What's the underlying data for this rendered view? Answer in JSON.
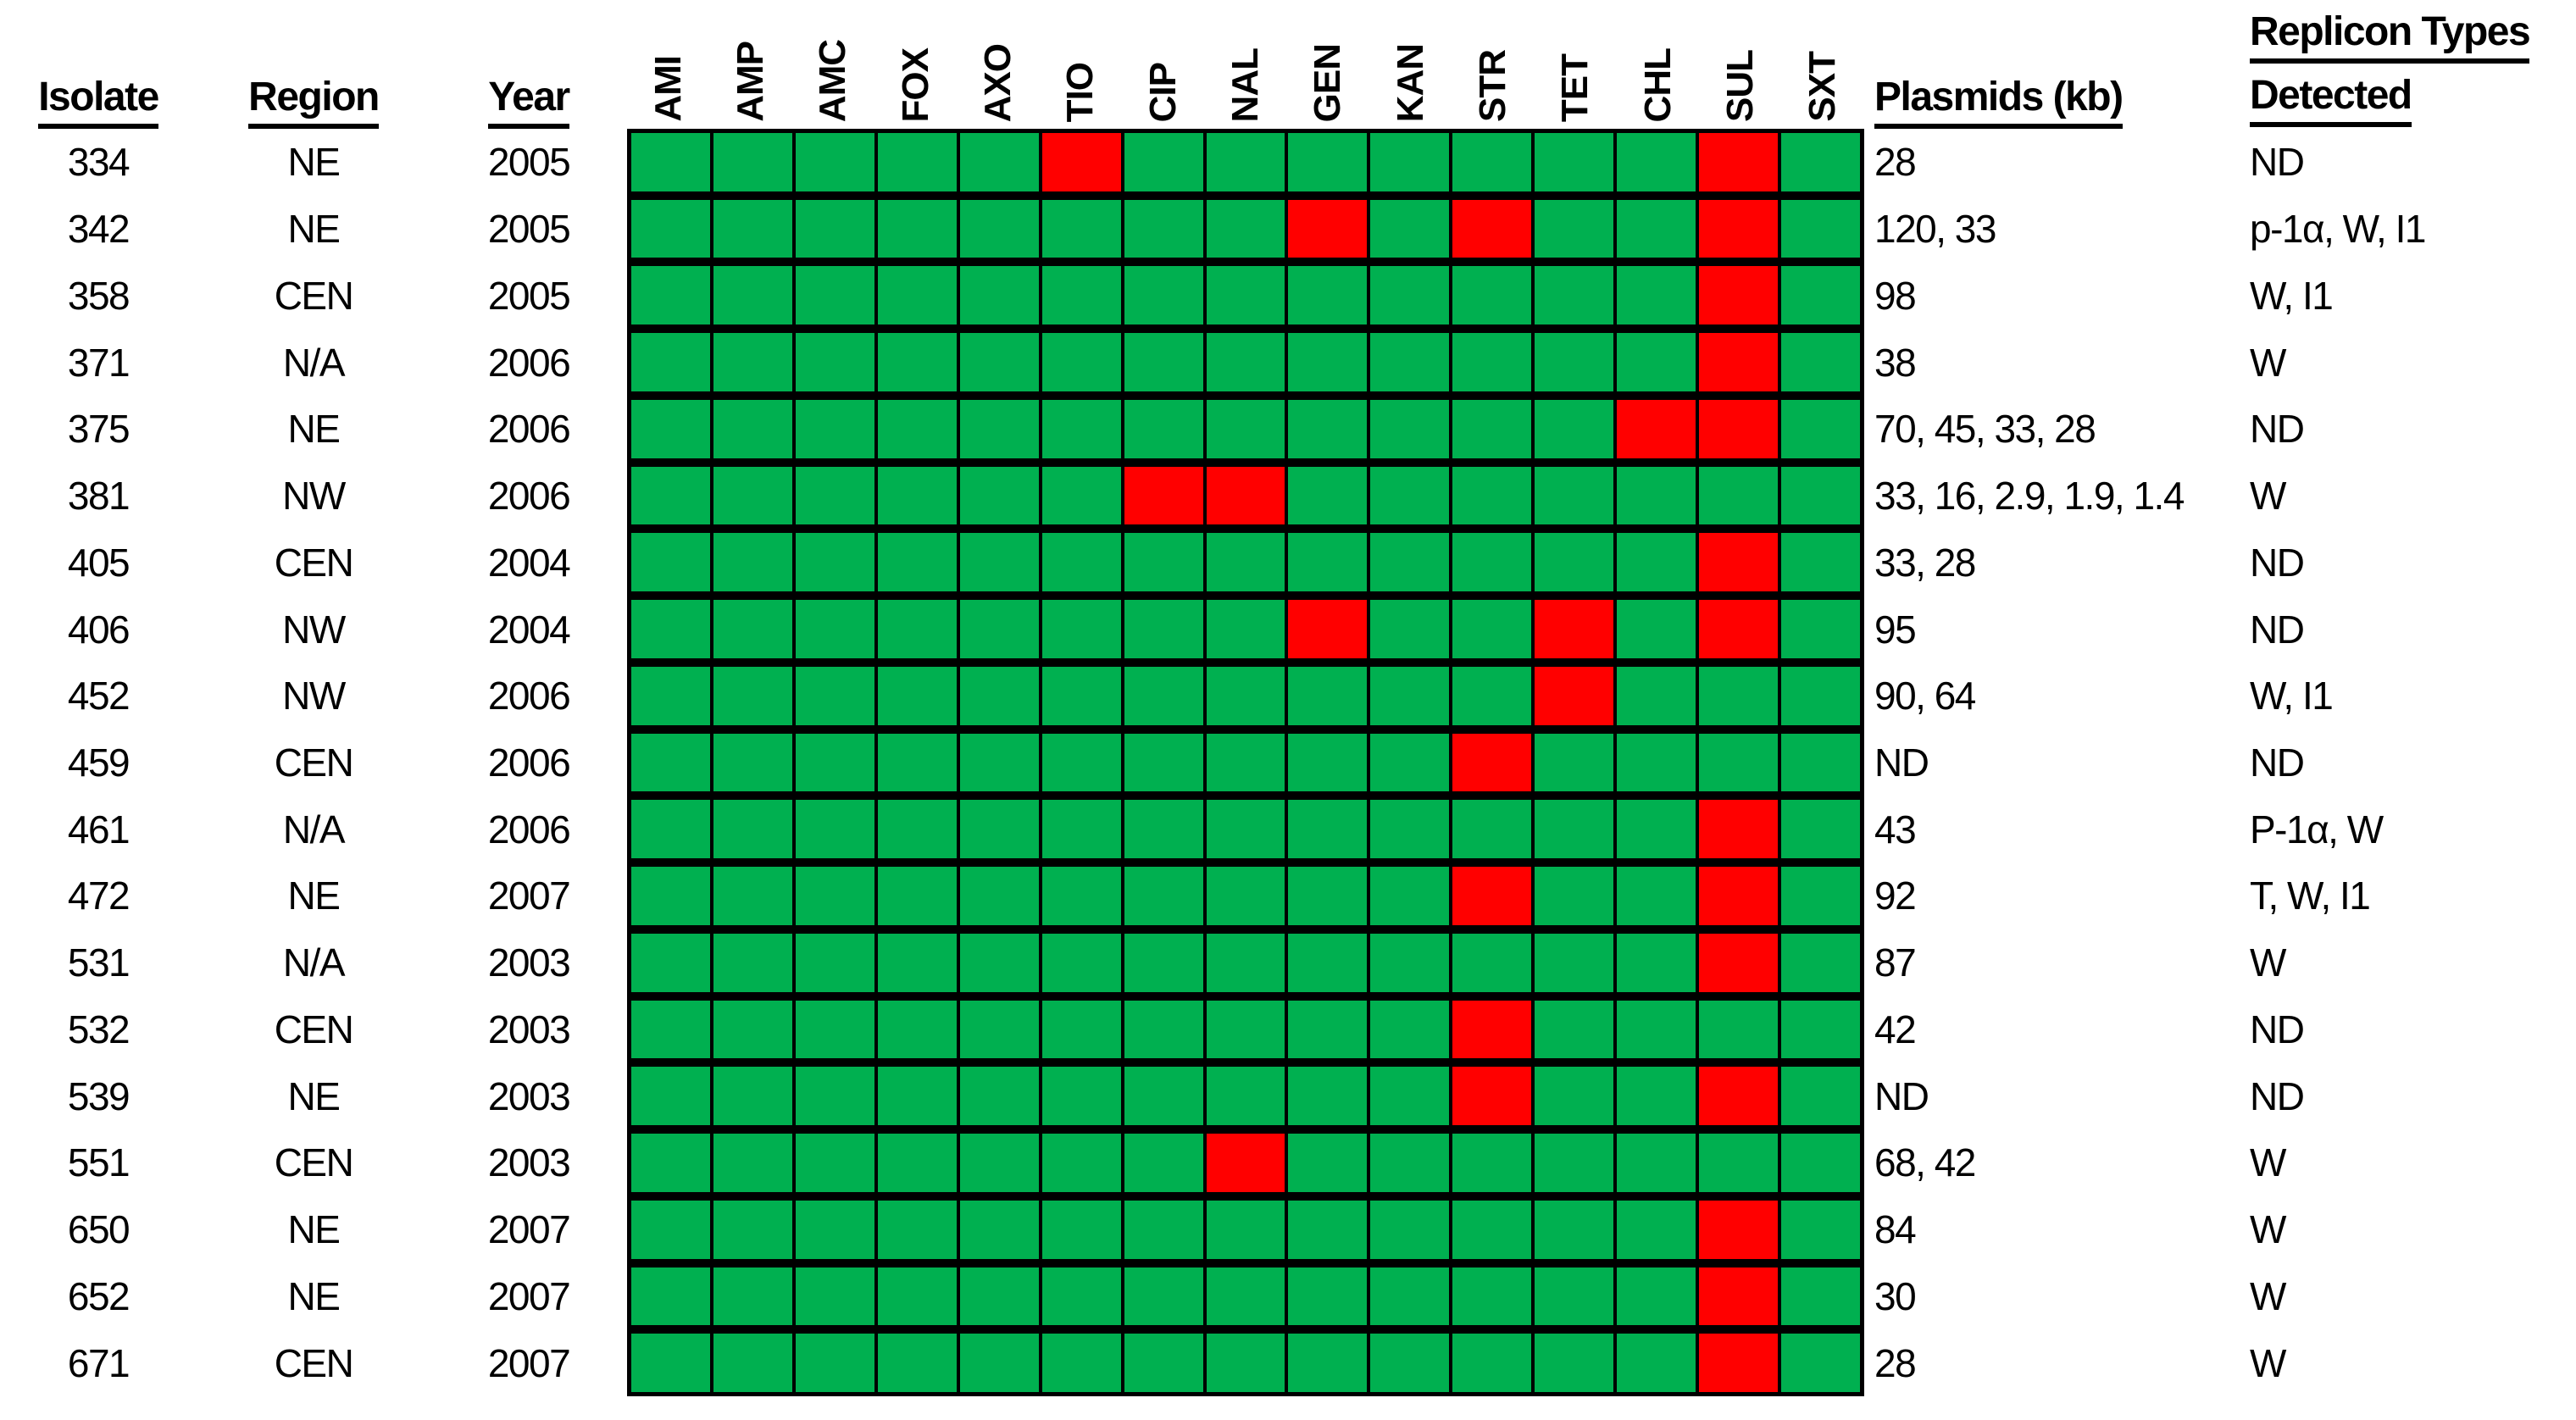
{
  "figure": {
    "headers": {
      "isolate": "Isolate",
      "region": "Region",
      "year": "Year",
      "plasmids": "Plasmids (kb)",
      "replicon_line1": "Replicon Types",
      "replicon_line2": "Detected"
    },
    "colors": {
      "green": "#00B050",
      "red": "#FF0000"
    }
  },
  "chart_data": {
    "type": "heatmap",
    "columns": [
      "AMI",
      "AMP",
      "AMC",
      "FOX",
      "AXO",
      "TIO",
      "CIP",
      "NAL",
      "GEN",
      "KAN",
      "STR",
      "TET",
      "CHL",
      "SUL",
      "SXT"
    ],
    "cell_colors": {
      "green": "#00B050",
      "red": "#FF0000"
    },
    "rows": [
      {
        "isolate": "334",
        "region": "NE",
        "year": "2005",
        "red": [
          "TIO",
          "SUL"
        ],
        "plasmids_kb": "28",
        "replicon_types": "ND"
      },
      {
        "isolate": "342",
        "region": "NE",
        "year": "2005",
        "red": [
          "GEN",
          "STR",
          "SUL"
        ],
        "plasmids_kb": "120, 33",
        "replicon_types": "p-1α, W, I1"
      },
      {
        "isolate": "358",
        "region": "CEN",
        "year": "2005",
        "red": [
          "SUL"
        ],
        "plasmids_kb": "98",
        "replicon_types": "W, I1"
      },
      {
        "isolate": "371",
        "region": "N/A",
        "year": "2006",
        "red": [
          "SUL"
        ],
        "plasmids_kb": "38",
        "replicon_types": "W"
      },
      {
        "isolate": "375",
        "region": "NE",
        "year": "2006",
        "red": [
          "CHL",
          "SUL"
        ],
        "plasmids_kb": "70, 45, 33, 28",
        "replicon_types": "ND"
      },
      {
        "isolate": "381",
        "region": "NW",
        "year": "2006",
        "red": [
          "CIP",
          "NAL"
        ],
        "plasmids_kb": "33, 16, 2.9, 1.9, 1.4",
        "replicon_types": "W"
      },
      {
        "isolate": "405",
        "region": "CEN",
        "year": "2004",
        "red": [
          "SUL"
        ],
        "plasmids_kb": "33, 28",
        "replicon_types": "ND"
      },
      {
        "isolate": "406",
        "region": "NW",
        "year": "2004",
        "red": [
          "GEN",
          "TET",
          "SUL"
        ],
        "plasmids_kb": "95",
        "replicon_types": "ND"
      },
      {
        "isolate": "452",
        "region": "NW",
        "year": "2006",
        "red": [
          "TET"
        ],
        "plasmids_kb": "90, 64",
        "replicon_types": "W, I1"
      },
      {
        "isolate": "459",
        "region": "CEN",
        "year": "2006",
        "red": [
          "STR"
        ],
        "plasmids_kb": "ND",
        "replicon_types": "ND"
      },
      {
        "isolate": "461",
        "region": "N/A",
        "year": "2006",
        "red": [
          "SUL"
        ],
        "plasmids_kb": "43",
        "replicon_types": "P-1α, W"
      },
      {
        "isolate": "472",
        "region": "NE",
        "year": "2007",
        "red": [
          "STR",
          "SUL"
        ],
        "plasmids_kb": "92",
        "replicon_types": "T, W, I1"
      },
      {
        "isolate": "531",
        "region": "N/A",
        "year": "2003",
        "red": [
          "SUL"
        ],
        "plasmids_kb": "87",
        "replicon_types": "W"
      },
      {
        "isolate": "532",
        "region": "CEN",
        "year": "2003",
        "red": [
          "STR"
        ],
        "plasmids_kb": "42",
        "replicon_types": "ND"
      },
      {
        "isolate": "539",
        "region": "NE",
        "year": "2003",
        "red": [
          "STR",
          "SUL"
        ],
        "plasmids_kb": "ND",
        "replicon_types": "ND"
      },
      {
        "isolate": "551",
        "region": "CEN",
        "year": "2003",
        "red": [
          "NAL"
        ],
        "plasmids_kb": "68, 42",
        "replicon_types": "W"
      },
      {
        "isolate": "650",
        "region": "NE",
        "year": "2007",
        "red": [
          "SUL"
        ],
        "plasmids_kb": "84",
        "replicon_types": "W"
      },
      {
        "isolate": "652",
        "region": "NE",
        "year": "2007",
        "red": [
          "SUL"
        ],
        "plasmids_kb": "30",
        "replicon_types": "W"
      },
      {
        "isolate": "671",
        "region": "CEN",
        "year": "2007",
        "red": [
          "SUL"
        ],
        "plasmids_kb": "28",
        "replicon_types": "W"
      }
    ]
  }
}
